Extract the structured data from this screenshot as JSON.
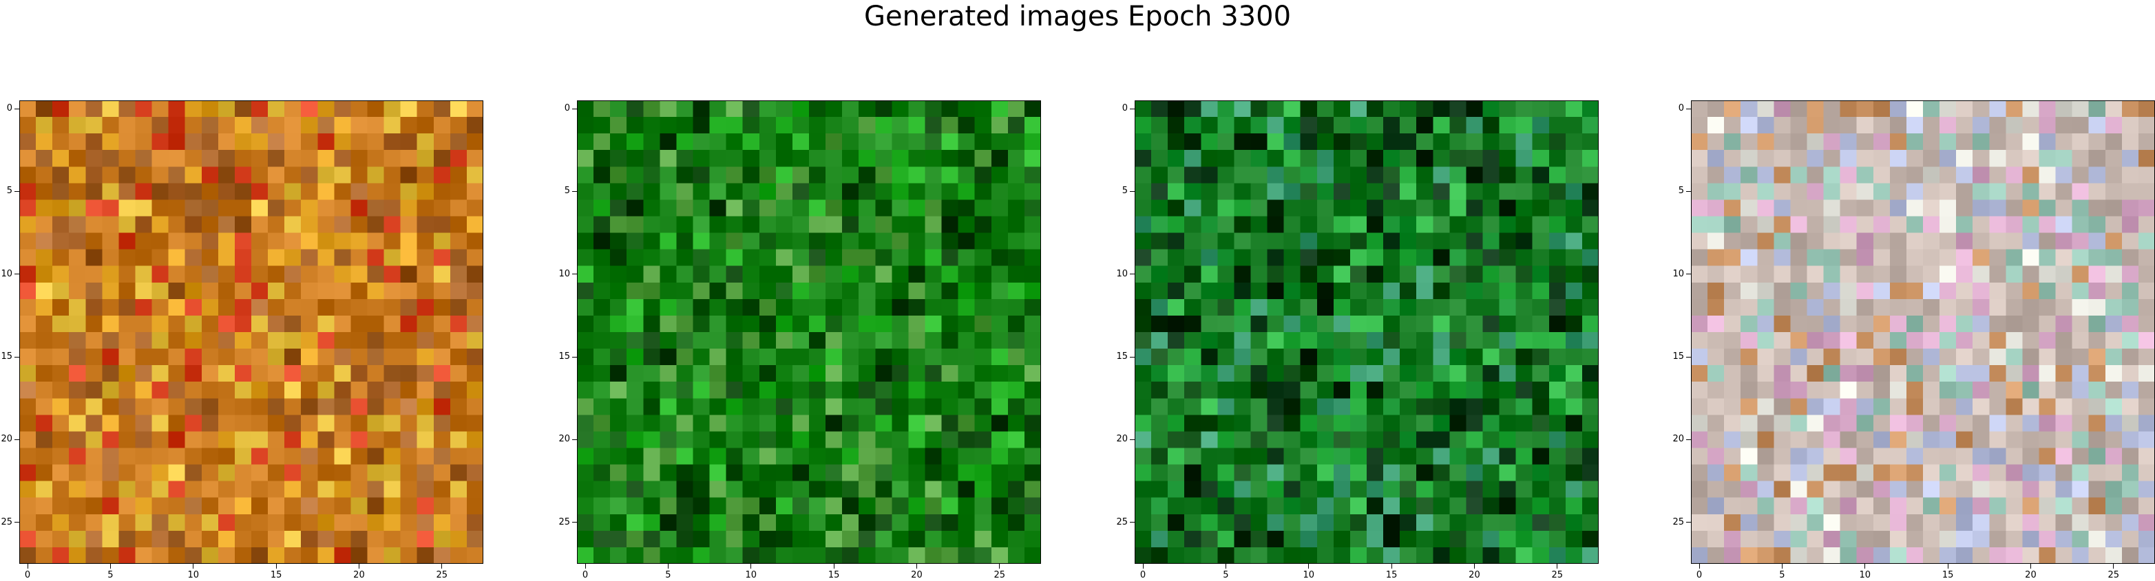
{
  "title": "Generated images Epoch 3300",
  "ticks": {
    "x": [
      "0",
      "5",
      "10",
      "15",
      "20",
      "25"
    ],
    "y": [
      "0",
      "5",
      "10",
      "15",
      "20",
      "25"
    ]
  },
  "images": [
    {
      "label": "",
      "grid_size": 28,
      "palette": {
        "base": "#c8781e",
        "alt": [
          "#e0a020",
          "#d84020",
          "#b06a30",
          "#e6c040",
          "#9a5a20"
        ]
      }
    },
    {
      "label": "",
      "grid_size": 28,
      "palette": {
        "base": "#0f7a0f",
        "alt": [
          "#0a5a0a",
          "#22b022",
          "#064006",
          "#55a040",
          "#1c8c1c"
        ]
      }
    },
    {
      "label": "",
      "grid_size": 28,
      "palette": {
        "base": "#167a22",
        "alt": [
          "#0a4a10",
          "#2ab040",
          "#053010",
          "#3a9a70",
          "#108a2a"
        ]
      }
    },
    {
      "label": "",
      "grid_size": 28,
      "palette": {
        "base": "#c8b8b0",
        "alt": [
          "#e0e0d8",
          "#b8c0e0",
          "#c89060",
          "#d8a8c8",
          "#9ac8b8"
        ]
      }
    }
  ]
}
